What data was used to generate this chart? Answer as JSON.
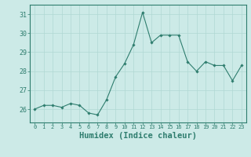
{
  "x": [
    0,
    1,
    2,
    3,
    4,
    5,
    6,
    7,
    8,
    9,
    10,
    11,
    12,
    13,
    14,
    15,
    16,
    17,
    18,
    19,
    20,
    21,
    22,
    23
  ],
  "y": [
    26.0,
    26.2,
    26.2,
    26.1,
    26.3,
    26.2,
    25.8,
    25.7,
    26.5,
    27.7,
    28.4,
    29.4,
    31.1,
    29.5,
    29.9,
    29.9,
    29.9,
    28.5,
    28.0,
    28.5,
    28.3,
    28.3,
    27.5,
    28.3
  ],
  "line_color": "#2e7d6e",
  "marker": "D",
  "markersize": 1.8,
  "linewidth": 0.8,
  "background_color": "#cceae7",
  "grid_color": "#b0d8d3",
  "tick_color": "#2e7d6e",
  "spine_color": "#2e7d6e",
  "xlabel": "Humidex (Indice chaleur)",
  "xlabel_fontsize": 7.5,
  "xlabel_bold": true,
  "ylim": [
    25.3,
    31.5
  ],
  "yticks": [
    26,
    27,
    28,
    29,
    30,
    31
  ],
  "xticks": [
    0,
    1,
    2,
    3,
    4,
    5,
    6,
    7,
    8,
    9,
    10,
    11,
    12,
    13,
    14,
    15,
    16,
    17,
    18,
    19,
    20,
    21,
    22,
    23
  ],
  "xtick_fontsize": 5.0,
  "ytick_fontsize": 6.0
}
